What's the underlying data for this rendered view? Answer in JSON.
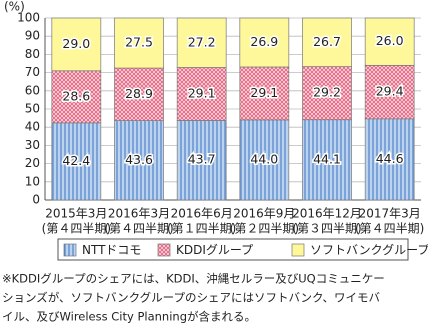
{
  "chart_data": {
    "type": "stacked_bar",
    "y_label": "(%)",
    "categories": [
      [
        "2015年3月",
        "(第４四半期)"
      ],
      [
        "2016年3月",
        "(第４四半期)"
      ],
      [
        "2016年6月",
        "(第１四半期)"
      ],
      [
        "2016年9月",
        "(第２四半期)"
      ],
      [
        "2016年12月",
        "(第３四半期)"
      ],
      [
        "2017年3月",
        "(第４四半期)"
      ]
    ],
    "series": [
      {
        "name": "NTTドコモ",
        "color": "#bcd3ee",
        "pattern": "vertical",
        "values": [
          42.4,
          43.6,
          43.7,
          44.0,
          44.1,
          44.6
        ],
        "value_labels": [
          "42.4",
          "43.6",
          "43.7",
          "44.0",
          "44.1",
          "44.6"
        ]
      },
      {
        "name": "KDDIグループ",
        "color": "#fbd3dc",
        "pattern": "cross",
        "values": [
          28.6,
          28.9,
          29.1,
          29.1,
          29.2,
          29.4
        ],
        "value_labels": [
          "28.6",
          "28.9",
          "29.1",
          "29.1",
          "29.2",
          "29.4"
        ]
      },
      {
        "name": "ソフトバンクグループ",
        "color": "#fff89a",
        "pattern": "none",
        "values": [
          29.0,
          27.5,
          27.2,
          26.9,
          26.7,
          26.0
        ],
        "value_labels": [
          "29.0",
          "27.5",
          "27.2",
          "26.9",
          "26.7",
          "26.0"
        ]
      }
    ],
    "ylim": [
      0,
      100
    ],
    "yticks": [
      0,
      10,
      20,
      30,
      40,
      50,
      60,
      70,
      80,
      90,
      100
    ],
    "grid": true,
    "note": [
      "※KDDIグループのシェアには、KDDI、沖縄セルラー及びUQコミュニケー",
      "ションズが、ソフトバンクグループのシェアにはソフトバンク、ワイモバ",
      "イル、及びWireless City Planningが含まれる。"
    ]
  }
}
